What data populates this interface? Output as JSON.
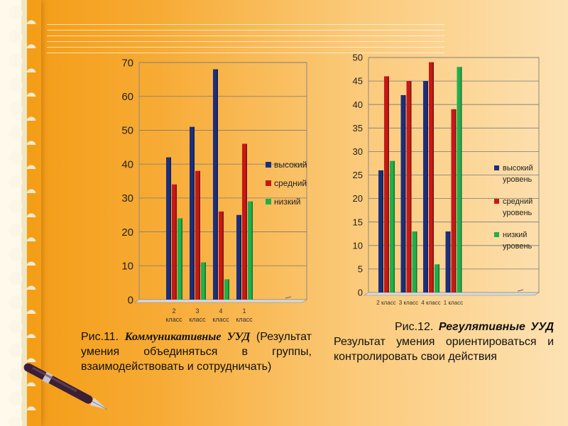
{
  "colors": {
    "high": "#1c2f7d",
    "mid": "#c51a16",
    "low": "#1fb04a",
    "axis": "#8a8a8a",
    "grid": "#7a7a7a"
  },
  "chart_data": [
    {
      "type": "bar",
      "categories": [
        "2 класс",
        "3 класс",
        "4 класс",
        "1 класс"
      ],
      "series": [
        {
          "name": "высокий",
          "values": [
            42,
            51,
            68,
            25
          ]
        },
        {
          "name": "средний",
          "values": [
            34,
            38,
            26,
            46
          ]
        },
        {
          "name": "низкий",
          "values": [
            24,
            11,
            6,
            29
          ]
        }
      ],
      "ylim": [
        0,
        70
      ],
      "yticks": [
        0,
        10,
        20,
        30,
        40,
        50,
        60,
        70
      ],
      "grid": true,
      "legend": "right"
    },
    {
      "type": "bar",
      "categories": [
        "2 класс",
        "3 класс",
        "4 класс",
        "1 класс"
      ],
      "series": [
        {
          "name": "высокий уровень",
          "values": [
            26,
            42,
            45,
            13
          ]
        },
        {
          "name": "средний уровень",
          "values": [
            46,
            45,
            49,
            39
          ]
        },
        {
          "name": "низкий уровень",
          "values": [
            28,
            13,
            6,
            48
          ]
        }
      ],
      "ylim": [
        0,
        50
      ],
      "yticks": [
        0,
        5,
        10,
        15,
        20,
        25,
        30,
        35,
        40,
        45,
        50
      ],
      "grid": true,
      "legend": "right"
    }
  ],
  "chart1_legend": [
    "высокий",
    "средний",
    "низкий"
  ],
  "chart2_legend": [
    [
      "высокий",
      "уровень"
    ],
    [
      "средний",
      "уровень"
    ],
    [
      "низкий",
      "уровень"
    ]
  ],
  "chart1_xlabels": [
    [
      "2",
      "класс"
    ],
    [
      "3",
      "класс"
    ],
    [
      "4",
      "класс"
    ],
    [
      "1",
      "класс"
    ]
  ],
  "chart2_xlabels": [
    "2 класс",
    "3 класс",
    "4 класс",
    "1 класс"
  ],
  "caption1": {
    "prefix": "Рис.11. ",
    "title": "Коммуникативные УУД",
    "body": " (Результат умения объединяться в группы, взаимодействовать и сотрудничать)"
  },
  "caption2": {
    "prefix": "Рис.12. ",
    "title": "Регулятивные УУД",
    "body": " Результат умения ориентироваться и контролировать свои действия"
  },
  "icons": {
    "pen": "fountain-pen-icon",
    "lace": "lace-border"
  }
}
